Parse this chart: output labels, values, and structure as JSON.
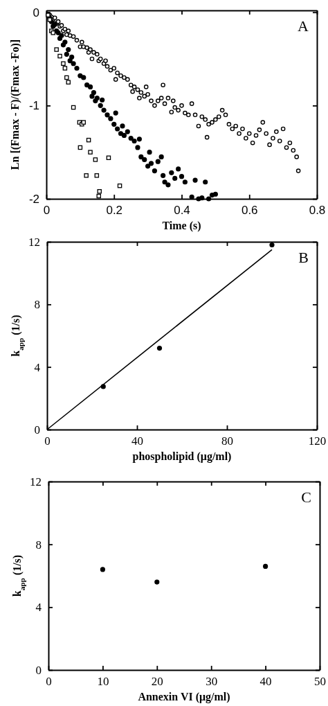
{
  "chart_data": [
    {
      "type": "scatter",
      "xlabel": "Time (s)",
      "ylabel": "Ln [(Fmax - F)/(Fmax -Fo)]",
      "annotations": [
        "A"
      ],
      "xlim": [
        0,
        0.8
      ],
      "xticks": [
        0,
        0.2,
        0.4,
        0.6,
        0.8
      ],
      "ylim": [
        -2,
        0.02
      ],
      "yticks": [
        -2,
        -1,
        0
      ],
      "series": [
        {
          "color": "#000000",
          "marker": "circle-open",
          "x": [
            0.005,
            0.01,
            0.015,
            0.02,
            0.025,
            0.03,
            0.035,
            0.04,
            0.045,
            0.05,
            0.055,
            0.06,
            0.065,
            0.07,
            0.08,
            0.09,
            0.1,
            0.105,
            0.11,
            0.12,
            0.125,
            0.13,
            0.135,
            0.14,
            0.15,
            0.155,
            0.16,
            0.17,
            0.175,
            0.18,
            0.19,
            0.2,
            0.205,
            0.21,
            0.22,
            0.23,
            0.24,
            0.25,
            0.255,
            0.26,
            0.27,
            0.275,
            0.28,
            0.29,
            0.295,
            0.3,
            0.31,
            0.32,
            0.33,
            0.34,
            0.345,
            0.35,
            0.36,
            0.37,
            0.375,
            0.38,
            0.39,
            0.4,
            0.41,
            0.42,
            0.43,
            0.44,
            0.45,
            0.46,
            0.47,
            0.475,
            0.48,
            0.49,
            0.5,
            0.51,
            0.52,
            0.53,
            0.54,
            0.55,
            0.56,
            0.57,
            0.58,
            0.59,
            0.6,
            0.61,
            0.62,
            0.63,
            0.64,
            0.65,
            0.66,
            0.67,
            0.68,
            0.69,
            0.7,
            0.71,
            0.72,
            0.73,
            0.74,
            0.745
          ],
          "values": [
            -0.02,
            -0.03,
            -0.05,
            -0.08,
            -0.06,
            -0.12,
            -0.1,
            -0.15,
            -0.14,
            -0.2,
            -0.18,
            -0.24,
            -0.2,
            -0.25,
            -0.26,
            -0.3,
            -0.37,
            -0.32,
            -0.37,
            -0.38,
            -0.43,
            -0.4,
            -0.5,
            -0.43,
            -0.45,
            -0.52,
            -0.5,
            -0.55,
            -0.52,
            -0.58,
            -0.62,
            -0.6,
            -0.72,
            -0.65,
            -0.68,
            -0.7,
            -0.72,
            -0.78,
            -0.85,
            -0.8,
            -0.83,
            -0.92,
            -0.86,
            -0.9,
            -0.8,
            -0.88,
            -0.95,
            -1.0,
            -0.95,
            -0.92,
            -0.78,
            -0.98,
            -0.92,
            -1.07,
            -0.95,
            -1.02,
            -1.05,
            -1.0,
            -1.08,
            -1.1,
            -0.98,
            -1.1,
            -1.22,
            -1.12,
            -1.15,
            -1.34,
            -1.2,
            -1.18,
            -1.15,
            -1.12,
            -1.05,
            -1.1,
            -1.2,
            -1.25,
            -1.22,
            -1.3,
            -1.25,
            -1.35,
            -1.3,
            -1.4,
            -1.32,
            -1.26,
            -1.18,
            -1.3,
            -1.42,
            -1.35,
            -1.28,
            -1.38,
            -1.25,
            -1.45,
            -1.4,
            -1.48,
            -1.55,
            -1.7
          ]
        },
        {
          "color": "#000000",
          "marker": "circle",
          "x": [
            0.005,
            0.01,
            0.015,
            0.02,
            0.025,
            0.03,
            0.035,
            0.04,
            0.045,
            0.05,
            0.055,
            0.06,
            0.065,
            0.07,
            0.075,
            0.08,
            0.09,
            0.1,
            0.11,
            0.12,
            0.13,
            0.135,
            0.14,
            0.145,
            0.15,
            0.16,
            0.165,
            0.17,
            0.18,
            0.19,
            0.2,
            0.205,
            0.21,
            0.22,
            0.225,
            0.23,
            0.24,
            0.25,
            0.26,
            0.27,
            0.275,
            0.28,
            0.29,
            0.3,
            0.305,
            0.31,
            0.32,
            0.33,
            0.34,
            0.345,
            0.35,
            0.36,
            0.37,
            0.38,
            0.39,
            0.4,
            0.41,
            0.43,
            0.44,
            0.45,
            0.46,
            0.47,
            0.48,
            0.49,
            0.5
          ],
          "values": [
            -0.03,
            -0.06,
            -0.1,
            -0.15,
            -0.13,
            -0.2,
            -0.22,
            -0.28,
            -0.25,
            -0.35,
            -0.32,
            -0.45,
            -0.4,
            -0.52,
            -0.48,
            -0.55,
            -0.6,
            -0.68,
            -0.7,
            -0.78,
            -0.8,
            -0.9,
            -0.86,
            -0.95,
            -0.92,
            -1.0,
            -0.94,
            -1.05,
            -1.1,
            -1.14,
            -1.2,
            -1.08,
            -1.25,
            -1.3,
            -1.22,
            -1.32,
            -1.28,
            -1.35,
            -1.38,
            -1.45,
            -1.36,
            -1.55,
            -1.58,
            -1.65,
            -1.5,
            -1.62,
            -1.7,
            -1.6,
            -1.55,
            -1.75,
            -1.82,
            -1.85,
            -1.72,
            -1.78,
            -1.68,
            -1.76,
            -1.82,
            -1.98,
            -1.8,
            -2.0,
            -1.99,
            -1.82,
            -2.0,
            -1.96,
            -1.95
          ]
        },
        {
          "color": "#000000",
          "marker": "square-open",
          "x": [
            0.005,
            0.01,
            0.015,
            0.02,
            0.03,
            0.04,
            0.05,
            0.055,
            0.06,
            0.065,
            0.08,
            0.098,
            0.105,
            0.11,
            0.1,
            0.125,
            0.13,
            0.145,
            0.118,
            0.149,
            0.184,
            0.217,
            0.157,
            0.155
          ],
          "values": [
            -0.03,
            -0.08,
            -0.2,
            -0.22,
            -0.4,
            -0.47,
            -0.55,
            -0.6,
            -0.7,
            -0.75,
            -1.02,
            -1.18,
            -1.2,
            -1.18,
            -1.45,
            -1.37,
            -1.5,
            -1.58,
            -1.75,
            -1.75,
            -1.56,
            -1.86,
            -1.92,
            -1.97
          ]
        }
      ]
    },
    {
      "type": "scatter",
      "xlabel": "phospholipid  (μg/ml)",
      "ylabel": "k$_{app}$  (1/s)",
      "annotations": [
        "B"
      ],
      "xlim": [
        0,
        120
      ],
      "xticks": [
        0,
        40,
        80,
        120
      ],
      "ylim": [
        0,
        12
      ],
      "yticks": [
        0,
        4,
        8,
        12
      ],
      "series": [
        {
          "color": "#000000",
          "marker": "circle",
          "x": [
            25,
            50,
            100
          ],
          "values": [
            2.75,
            5.2,
            11.8
          ]
        },
        {
          "type": "line",
          "color": "#000000",
          "marker": "none",
          "x": [
            0,
            100
          ],
          "values": [
            0,
            11.5
          ]
        }
      ]
    },
    {
      "type": "scatter",
      "xlabel": "Annexin VI   (μg/ml)",
      "ylabel": "k$_{app}$  (1/s)",
      "annotations": [
        "C"
      ],
      "xlim": [
        0,
        50
      ],
      "xticks": [
        0,
        10,
        20,
        30,
        40,
        50
      ],
      "ylim": [
        0,
        12
      ],
      "yticks": [
        0,
        4,
        8,
        12
      ],
      "series": [
        {
          "color": "#000000",
          "marker": "circle",
          "x": [
            10,
            20,
            40
          ],
          "values": [
            6.4,
            5.6,
            6.6
          ]
        }
      ]
    }
  ]
}
